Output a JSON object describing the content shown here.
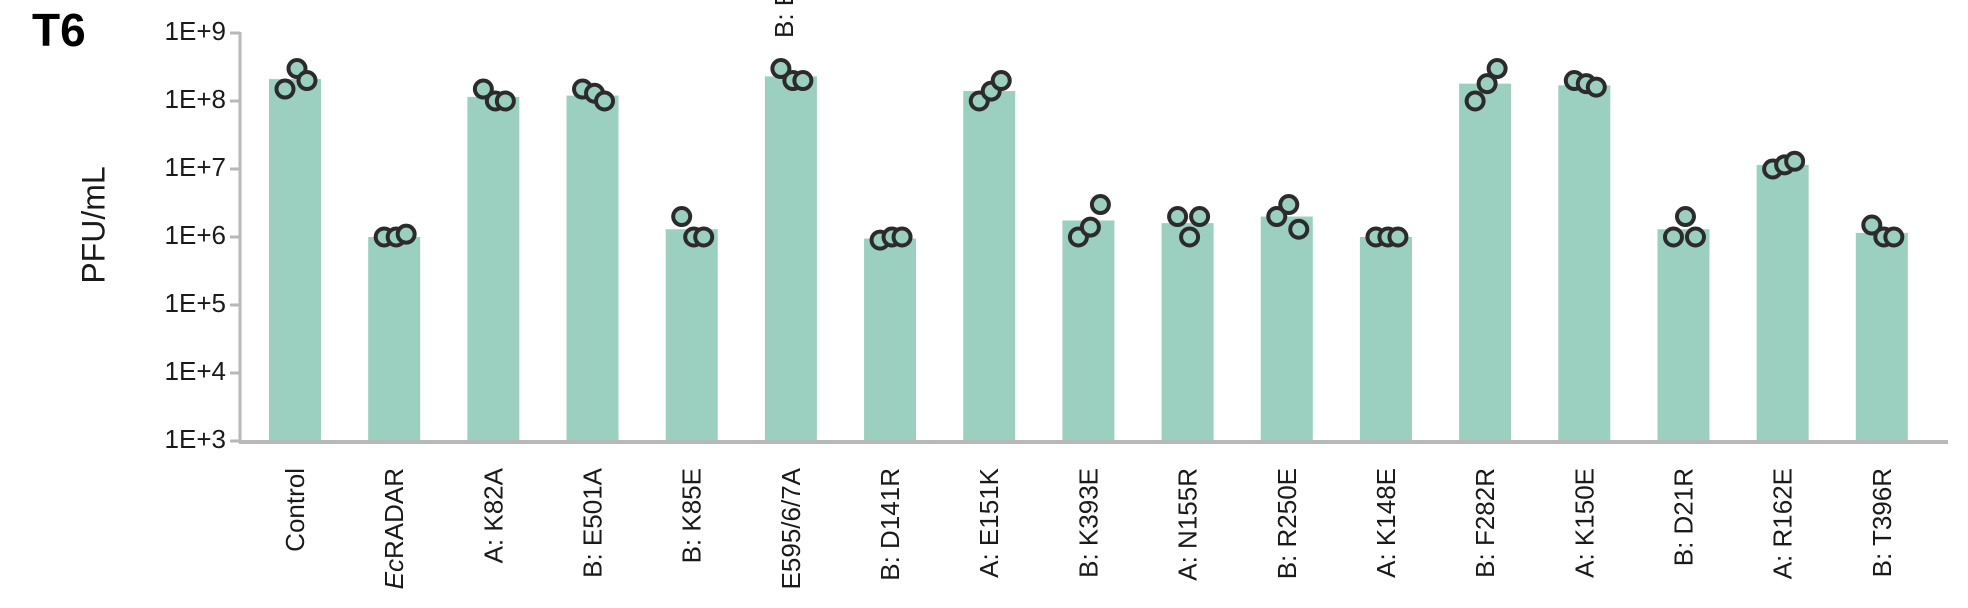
{
  "panel_label": "T6",
  "colors": {
    "bar": "#9bcfbf",
    "point_fill": "#9bcfbf",
    "point_stroke": "#2b2b2b",
    "axis": "#b8b8b8"
  },
  "chart_data": {
    "type": "bar",
    "title": "",
    "xlabel": "",
    "ylabel": "PFU/mL",
    "yscale": "log",
    "ylim": [
      1000,
      1000000000
    ],
    "yticks": [
      {
        "value": 1000,
        "label": "1E+3"
      },
      {
        "value": 10000,
        "label": "1E+4"
      },
      {
        "value": 100000,
        "label": "1E+5"
      },
      {
        "value": 1000000,
        "label": "1E+6"
      },
      {
        "value": 10000000,
        "label": "1E+7"
      },
      {
        "value": 100000000,
        "label": "1E+8"
      },
      {
        "value": 1000000000,
        "label": "1E+9"
      }
    ],
    "categories": [
      "Control",
      "EcRADAR",
      "A: K82A",
      "B: E501A",
      "B: K85E",
      "E595/6/7A",
      "B: D141R",
      "A: E151K",
      "B: K393E",
      "A: N155R",
      "B: R250E",
      "A: K148E",
      "B: F282R",
      "A: K150E",
      "B: D21R",
      "A: R162E",
      "B: T396R"
    ],
    "values": [
      210000000,
      1000000,
      115000000,
      120000000,
      1300000,
      230000000,
      950000,
      140000000,
      1750000,
      1600000,
      2000000,
      1000000,
      180000000,
      170000000,
      1300000,
      11500000,
      1150000
    ],
    "replicates": [
      [
        150000000,
        300000000,
        200000000
      ],
      [
        1000000,
        1000000,
        1100000
      ],
      [
        150000000,
        100000000,
        100000000
      ],
      [
        150000000,
        130000000,
        100000000
      ],
      [
        2000000,
        1000000,
        1000000
      ],
      [
        300000000,
        200000000,
        200000000
      ],
      [
        900000,
        1000000,
        1000000
      ],
      [
        100000000,
        140000000,
        200000000
      ],
      [
        1000000,
        1400000,
        3000000
      ],
      [
        2000000,
        1000000,
        2000000
      ],
      [
        2000000,
        3000000,
        1300000
      ],
      [
        1000000,
        1000000,
        1000000
      ],
      [
        100000000,
        180000000,
        300000000
      ],
      [
        200000000,
        180000000,
        160000000
      ],
      [
        1000000,
        2000000,
        1000000
      ],
      [
        10000000,
        11500000,
        13000000
      ],
      [
        1500000,
        1000000,
        1000000
      ]
    ],
    "annotations": [
      "B: E"
    ]
  }
}
